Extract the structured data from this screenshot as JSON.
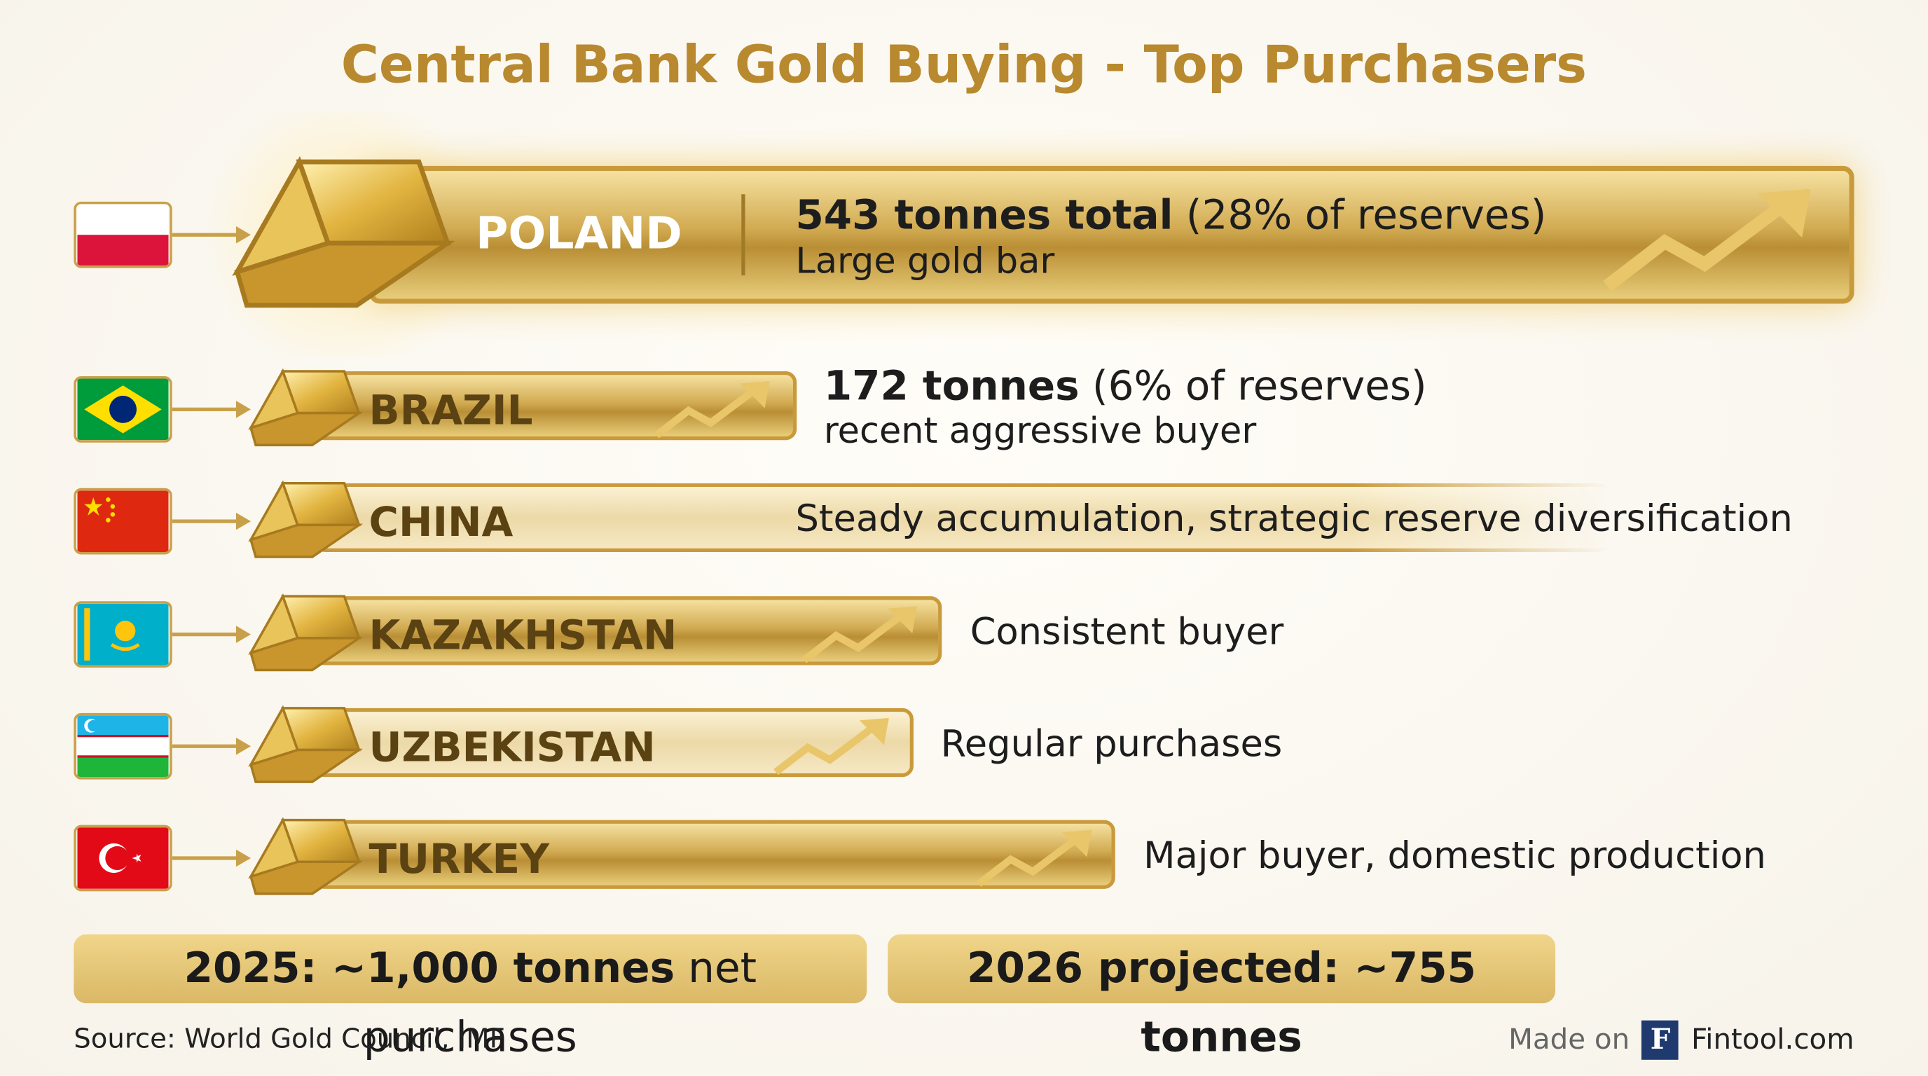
{
  "header": {
    "title": "Central Bank Gold Buying - Top Purchasers"
  },
  "rows": [
    {
      "country": "POLAND",
      "highlight": "543 tonnes total",
      "detail": "(28% of reserves)",
      "note": "Large gold bar"
    },
    {
      "country": "BRAZIL",
      "highlight": "172 tonnes",
      "detail": "(6% of reserves)",
      "note": "recent aggressive buyer"
    },
    {
      "country": "CHINA",
      "note": "Steady accumulation, strategic reserve diversification"
    },
    {
      "country": "KAZAKHSTAN",
      "note": "Consistent buyer"
    },
    {
      "country": "UZBEKISTAN",
      "note": "Regular purchases"
    },
    {
      "country": "TURKEY",
      "note": "Major buyer, domestic production"
    }
  ],
  "summary": [
    {
      "bold": "2025: ~1,000 tonnes",
      "text": "net purchases"
    },
    {
      "bold": "2026 projected: ~755 tonnes"
    }
  ],
  "footer": {
    "source": "Source: World Gold Council, IMF",
    "made_on": "Made on",
    "logo": "F",
    "brand": "Fintool.com"
  }
}
